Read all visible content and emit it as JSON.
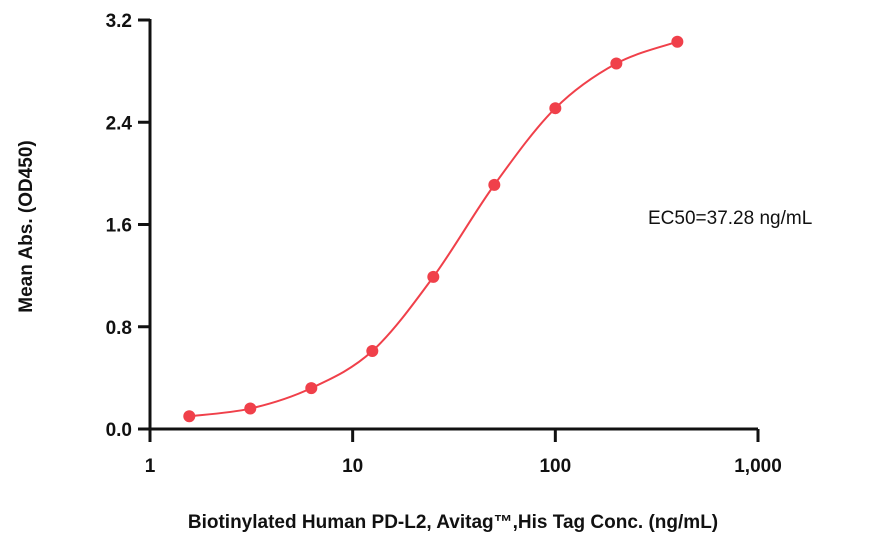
{
  "chart_data": {
    "type": "scatter",
    "title": "",
    "xlabel": "Biotinylated Human PD-L2, Avitag™,His Tag Conc. (ng/mL)",
    "ylabel": "Mean Abs. (OD450)",
    "xscale": "log",
    "xlim": [
      1,
      1000
    ],
    "ylim": [
      0,
      3.2
    ],
    "x_ticks": [
      1,
      10,
      100,
      1000
    ],
    "x_tick_labels": [
      "1",
      "10",
      "100",
      "1,000"
    ],
    "y_ticks": [
      0,
      0.8,
      1.6,
      2.4,
      3.2
    ],
    "y_tick_labels": [
      "0.0",
      "0.8",
      "1.6",
      "2.4",
      "3.2"
    ],
    "grid": false,
    "legend": "none",
    "series": [
      {
        "x": [
          1.5625,
          3.125,
          6.25,
          12.5,
          25,
          50,
          100,
          200,
          400
        ],
        "y": [
          0.1,
          0.16,
          0.32,
          0.61,
          1.19,
          1.91,
          2.51,
          2.86,
          3.03
        ],
        "color": "#f0404a",
        "fit": "sigmoid"
      }
    ],
    "annotations": [
      {
        "text": "EC50=37.28 ng/mL"
      }
    ]
  }
}
